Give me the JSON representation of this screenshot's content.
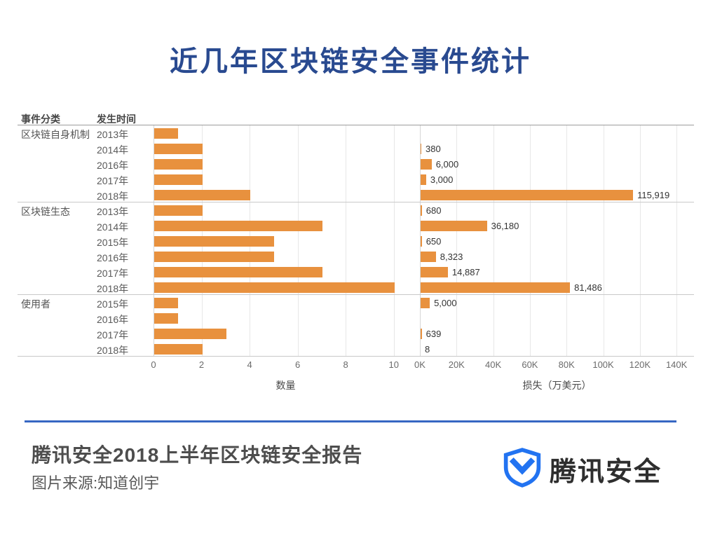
{
  "page": {
    "title": "近几年区块链安全事件统计"
  },
  "table": {
    "col1_header": "事件分类",
    "col2_header": "发生时间"
  },
  "chart_data": {
    "type": "bar",
    "orientation": "horizontal",
    "groups": [
      "区块链自身机制",
      "区块链生态",
      "使用者"
    ],
    "rows": [
      {
        "group": "区块链自身机制",
        "year": "2013年",
        "count": 1,
        "loss": null,
        "loss_label": ""
      },
      {
        "group": "",
        "year": "2014年",
        "count": 2,
        "loss": 380,
        "loss_label": "380"
      },
      {
        "group": "",
        "year": "2016年",
        "count": 2,
        "loss": 6000,
        "loss_label": "6,000"
      },
      {
        "group": "",
        "year": "2017年",
        "count": 2,
        "loss": 3000,
        "loss_label": "3,000"
      },
      {
        "group": "",
        "year": "2018年",
        "count": 4,
        "loss": 115919,
        "loss_label": "115,919"
      },
      {
        "group": "区块链生态",
        "year": "2013年",
        "count": 2,
        "loss": 680,
        "loss_label": "680"
      },
      {
        "group": "",
        "year": "2014年",
        "count": 7,
        "loss": 36180,
        "loss_label": "36,180"
      },
      {
        "group": "",
        "year": "2015年",
        "count": 5,
        "loss": 650,
        "loss_label": "650"
      },
      {
        "group": "",
        "year": "2016年",
        "count": 5,
        "loss": 8323,
        "loss_label": "8,323"
      },
      {
        "group": "",
        "year": "2017年",
        "count": 7,
        "loss": 14887,
        "loss_label": "14,887"
      },
      {
        "group": "",
        "year": "2018年",
        "count": 10,
        "loss": 81486,
        "loss_label": "81,486"
      },
      {
        "group": "使用者",
        "year": "2015年",
        "count": 1,
        "loss": 5000,
        "loss_label": "5,000"
      },
      {
        "group": "",
        "year": "2016年",
        "count": 1,
        "loss": null,
        "loss_label": ""
      },
      {
        "group": "",
        "year": "2017年",
        "count": 3,
        "loss": 639,
        "loss_label": "639"
      },
      {
        "group": "",
        "year": "2018年",
        "count": 2,
        "loss": 8,
        "loss_label": "8"
      }
    ],
    "left_axis": {
      "title": "数量",
      "tick_labels": [
        "0",
        "2",
        "4",
        "6",
        "8",
        "10"
      ],
      "tick_values": [
        0,
        2,
        4,
        6,
        8,
        10
      ],
      "max": 11
    },
    "right_axis": {
      "title": "损失（万美元）",
      "tick_labels": [
        "0K",
        "20K",
        "40K",
        "60K",
        "80K",
        "100K",
        "120K",
        "140K"
      ],
      "tick_values": [
        0,
        20000,
        40000,
        60000,
        80000,
        100000,
        120000,
        140000
      ],
      "max": 149500
    },
    "bar_color": "#E8913E"
  },
  "footer": {
    "report_title": "腾讯安全2018上半年区块链安全报告",
    "source": "图片来源:知道创宇",
    "brand": "腾讯安全"
  },
  "colors": {
    "title_blue": "#294A90",
    "divider_blue": "#3767C3",
    "bar_orange": "#E8913E",
    "logo_blue": "#2273F1"
  }
}
